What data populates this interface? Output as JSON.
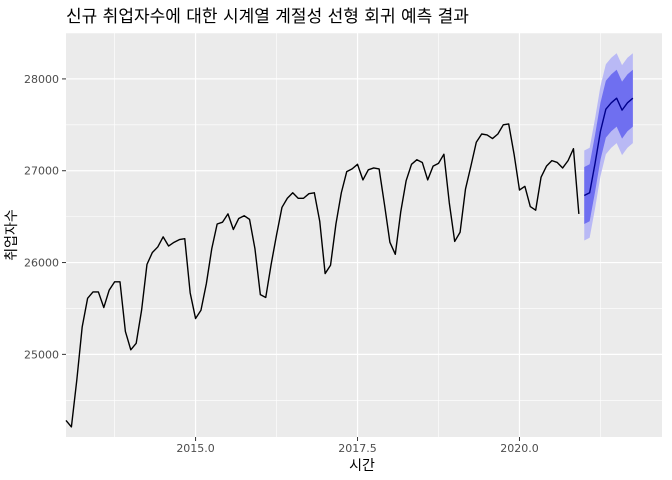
{
  "chart_data": {
    "type": "line",
    "title": "신규 취업자수에 대한 시계열 계절성 선형 회귀 예측 결과",
    "xlabel": "시간",
    "ylabel": "취업자수",
    "xlim": [
      2013.0,
      2022.2
    ],
    "ylim": [
      24100,
      28500
    ],
    "grid": true,
    "legend": "none",
    "x_ticks": [
      2015.0,
      2017.5,
      2020.0
    ],
    "x_tick_labels": [
      "2015.0",
      "2017.5",
      "2020.0"
    ],
    "y_ticks": [
      25000,
      26000,
      27000,
      28000
    ],
    "y_tick_labels": [
      "25000",
      "26000",
      "27000",
      "28000"
    ],
    "series": [
      {
        "role": "history",
        "x_start": 2013.0,
        "step": 0.0833333,
        "values": [
          24280,
          24210,
          24720,
          25300,
          25610,
          25680,
          25680,
          25510,
          25700,
          25790,
          25790,
          25250,
          25050,
          25120,
          25480,
          25980,
          26110,
          26170,
          26280,
          26180,
          26220,
          26250,
          26260,
          25670,
          25390,
          25480,
          25770,
          26150,
          26420,
          26440,
          26530,
          26360,
          26480,
          26510,
          26470,
          26150,
          25650,
          25620,
          25980,
          26300,
          26600,
          26700,
          26760,
          26700,
          26700,
          26750,
          26760,
          26450,
          25880,
          25970,
          26420,
          26760,
          26990,
          27020,
          27070,
          26900,
          27010,
          27030,
          27020,
          26630,
          26220,
          26090,
          26550,
          26890,
          27070,
          27120,
          27090,
          26900,
          27050,
          27080,
          27180,
          26650,
          26230,
          26330,
          26800,
          27050,
          27310,
          27400,
          27390,
          27350,
          27400,
          27500,
          27510,
          27180,
          26790,
          26830,
          26610,
          26570,
          26930,
          27050,
          27110,
          27090,
          27030,
          27110,
          27240,
          26530
        ]
      },
      {
        "role": "forecast",
        "x_start": 2021.0,
        "step": 0.0833333,
        "mean": [
          26730,
          26760,
          27080,
          27430,
          27670,
          27740,
          27790,
          27660,
          27740,
          27790
        ],
        "lo80": [
          26420,
          26450,
          26770,
          27120,
          27360,
          27430,
          27480,
          27350,
          27430,
          27480
        ],
        "hi80": [
          27040,
          27070,
          27390,
          27740,
          27980,
          28050,
          28100,
          27970,
          28050,
          28100
        ],
        "lo95": [
          26240,
          26270,
          26590,
          26940,
          27180,
          27250,
          27300,
          27170,
          27250,
          27300
        ],
        "hi95": [
          27220,
          27250,
          27570,
          27920,
          28160,
          28230,
          28280,
          28150,
          28230,
          28280
        ]
      }
    ],
    "colors": {
      "panel": "#ebebeb",
      "grid_major": "#ffffff",
      "history_line": "#000000",
      "forecast_line": "#00008b",
      "band80": "#6f6ff0",
      "band95": "#b9b9f5"
    }
  }
}
